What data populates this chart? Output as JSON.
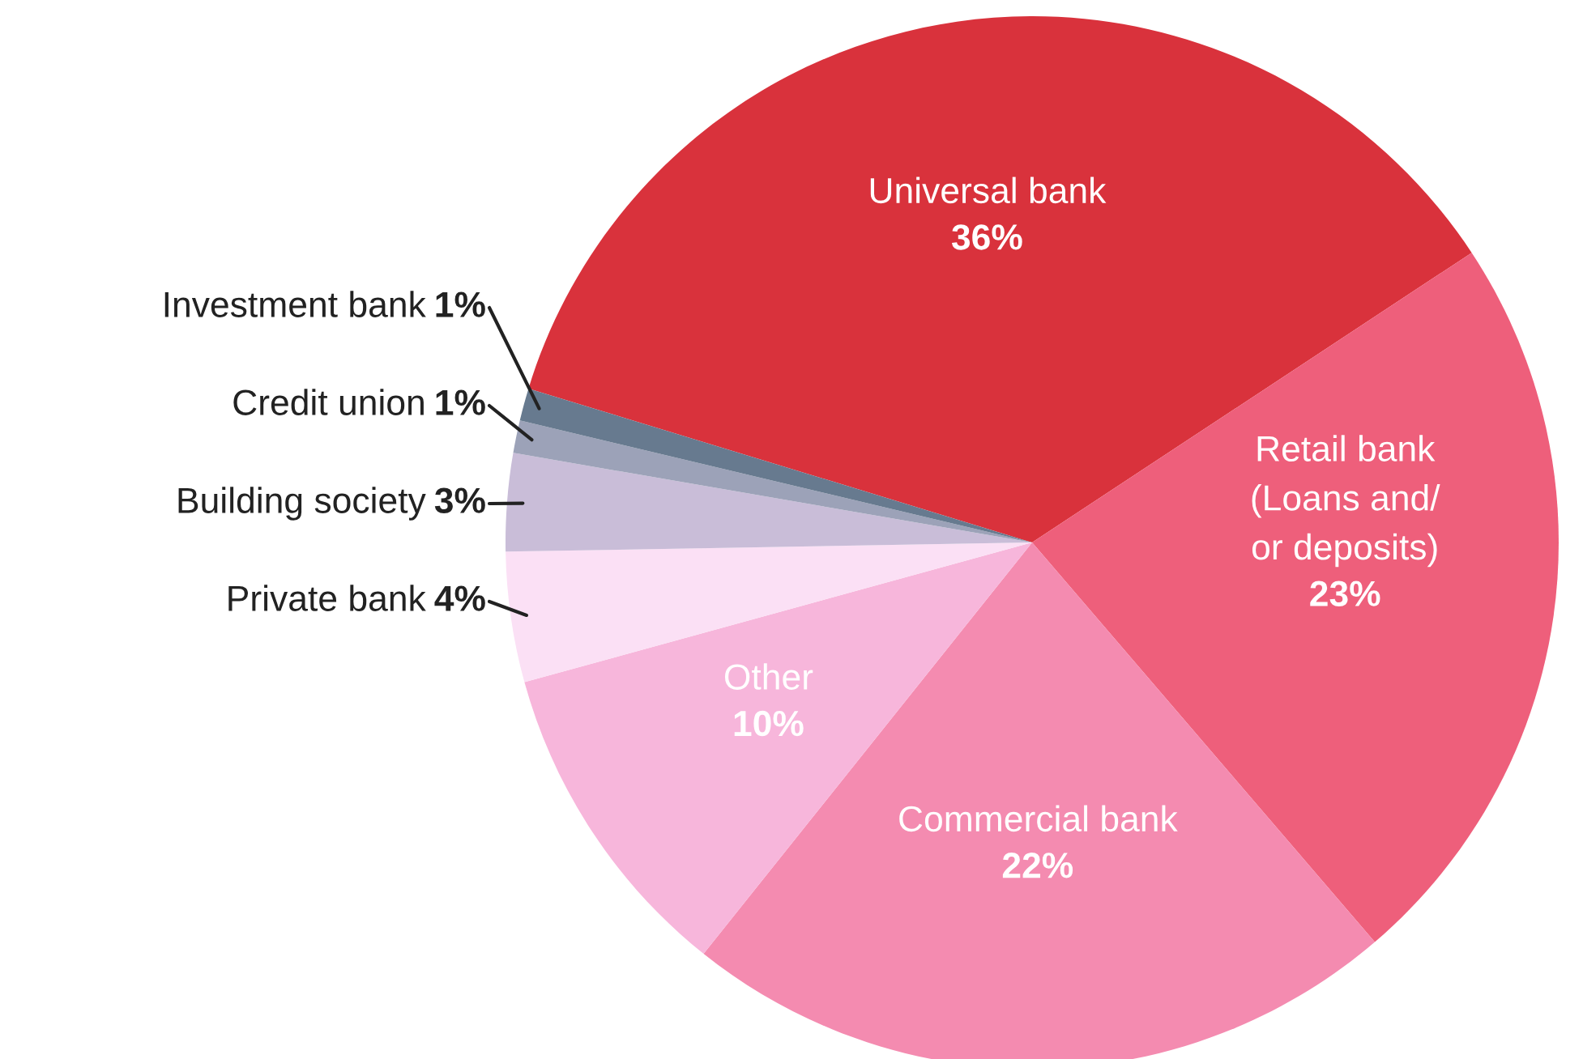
{
  "chart_data": {
    "type": "pie",
    "categories": [
      "Universal bank",
      "Retail bank\n(Loans and/\nor deposits)",
      "Commercial bank",
      "Other",
      "Private bank",
      "Building society",
      "Credit union",
      "Investment bank"
    ],
    "values": [
      36,
      23,
      22,
      10,
      4,
      3,
      1,
      1
    ],
    "colors": [
      "#d9323c",
      "#ee5f7b",
      "#f48bb0",
      "#f7b6db",
      "#fbe0f5",
      "#c9bdd8",
      "#9ca2b8",
      "#677a8f"
    ],
    "value_labels": [
      "36%",
      "23%",
      "22%",
      "10%",
      "4%",
      "3%",
      "1%",
      "1%"
    ]
  }
}
